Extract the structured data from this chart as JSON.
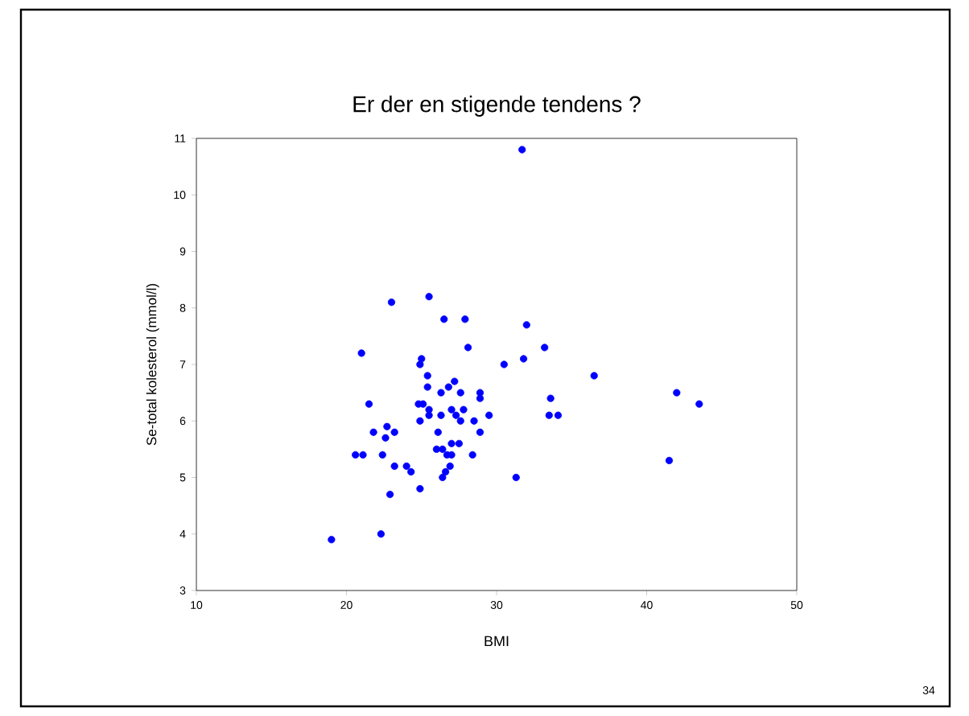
{
  "chart_data": {
    "type": "scatter",
    "title": "Er der en stigende tendens ?",
    "xlabel": "BMI",
    "ylabel": "Se-total kolesterol (mmol/l)",
    "annotations": [
      "34"
    ],
    "xlim": [
      10,
      50
    ],
    "xticks": [
      10,
      20,
      30,
      40,
      50
    ],
    "ylim": [
      3,
      11
    ],
    "yticks": [
      3,
      4,
      5,
      6,
      7,
      8,
      9,
      10,
      11
    ],
    "marker": "circle",
    "color": "#0000ff",
    "x": [
      19.0,
      22.3,
      22.9,
      24.9,
      31.3,
      26.4,
      26.6,
      26.9,
      23.2,
      24.0,
      24.3,
      41.5,
      20.6,
      21.1,
      22.4,
      26.0,
      26.4,
      26.7,
      27.0,
      27.0,
      27.5,
      28.4,
      22.6,
      21.8,
      23.2,
      22.7,
      26.1,
      28.9,
      24.9,
      27.6,
      28.5,
      21.5,
      24.8,
      25.1,
      25.5,
      25.5,
      26.3,
      27.0,
      27.3,
      27.8,
      29.5,
      33.5,
      34.1,
      33.6,
      43.5,
      42.0,
      28.9,
      28.9,
      27.6,
      26.3,
      26.8,
      27.2,
      25.4,
      25.4,
      36.5,
      24.9,
      25.0,
      30.5,
      31.8,
      21.0,
      28.1,
      33.2,
      32.0,
      26.5,
      27.9,
      23.0,
      25.5,
      31.7
    ],
    "values": [
      3.9,
      4.0,
      4.7,
      4.8,
      5.0,
      5.0,
      5.1,
      5.2,
      5.2,
      5.2,
      5.1,
      5.3,
      5.4,
      5.4,
      5.4,
      5.5,
      5.5,
      5.4,
      5.4,
      5.6,
      5.6,
      5.4,
      5.7,
      5.8,
      5.8,
      5.9,
      5.8,
      5.8,
      6.0,
      6.0,
      6.0,
      6.3,
      6.3,
      6.3,
      6.2,
      6.1,
      6.1,
      6.2,
      6.1,
      6.2,
      6.1,
      6.1,
      6.1,
      6.4,
      6.3,
      6.5,
      6.4,
      6.5,
      6.5,
      6.5,
      6.6,
      6.7,
      6.6,
      6.8,
      6.8,
      7.0,
      7.1,
      7.0,
      7.1,
      7.2,
      7.3,
      7.3,
      7.7,
      7.8,
      7.8,
      8.1,
      8.2,
      10.8
    ]
  }
}
